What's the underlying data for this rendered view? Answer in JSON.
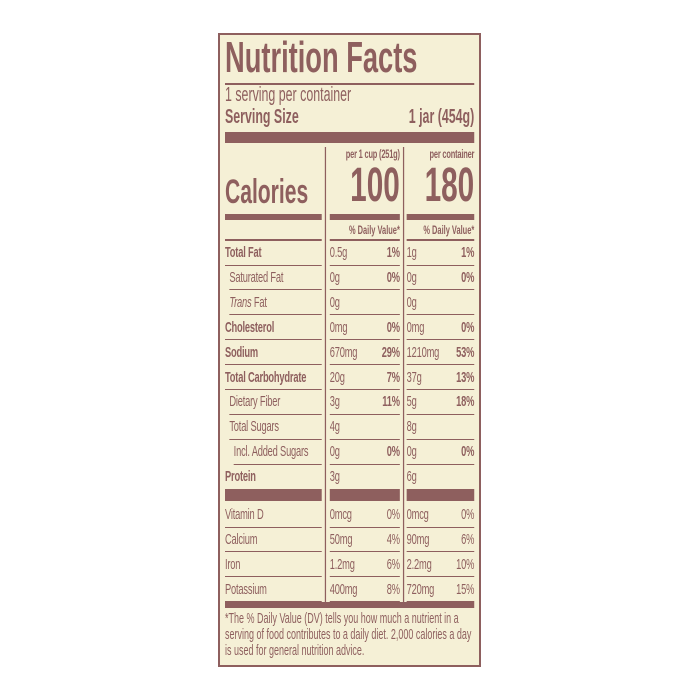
{
  "title": "Nutrition Facts",
  "servings": "1 serving per container",
  "serving_size_label": "Serving Size",
  "serving_size_value": "1 jar (454g)",
  "col1_header": "per 1 cup (251g)",
  "col2_header": "per container",
  "calories_label": "Calories",
  "calories_col1": "100",
  "calories_col2": "180",
  "dv_header": "% Daily Value*",
  "nutrients": [
    {
      "name": "Total Fat",
      "bold": true,
      "indent": 0,
      "v1": "0.5g",
      "p1": "1%",
      "v2": "1g",
      "p2": "1%"
    },
    {
      "name": "Saturated Fat",
      "bold": false,
      "indent": 1,
      "v1": "0g",
      "p1": "0%",
      "v2": "0g",
      "p2": "0%"
    },
    {
      "name": "Fat",
      "prefix_italic": "Trans",
      "bold": false,
      "indent": 1,
      "v1": "0g",
      "p1": "",
      "v2": "0g",
      "p2": ""
    },
    {
      "name": "Cholesterol",
      "bold": true,
      "indent": 0,
      "v1": "0mg",
      "p1": "0%",
      "v2": "0mg",
      "p2": "0%"
    },
    {
      "name": "Sodium",
      "bold": true,
      "indent": 0,
      "v1": "670mg",
      "p1": "29%",
      "v2": "1210mg",
      "p2": "53%"
    },
    {
      "name": "Total Carbohydrate",
      "bold": true,
      "indent": 0,
      "v1": "20g",
      "p1": "7%",
      "v2": "37g",
      "p2": "13%"
    },
    {
      "name": "Dietary Fiber",
      "bold": false,
      "indent": 1,
      "v1": "3g",
      "p1": "11%",
      "v2": "5g",
      "p2": "18%"
    },
    {
      "name": "Total Sugars",
      "bold": false,
      "indent": 1,
      "v1": "4g",
      "p1": "",
      "v2": "8g",
      "p2": ""
    },
    {
      "name": "Incl. Added Sugars",
      "bold": false,
      "indent": 2,
      "v1": "0g",
      "p1": "0%",
      "v2": "0g",
      "p2": "0%"
    },
    {
      "name": "Protein",
      "bold": true,
      "indent": 0,
      "v1": "3g",
      "p1": "",
      "v2": "6g",
      "p2": ""
    }
  ],
  "vitamins": [
    {
      "name": "Vitamin D",
      "v1": "0mcg",
      "p1": "0%",
      "v2": "0mcg",
      "p2": "0%"
    },
    {
      "name": "Calcium",
      "v1": "50mg",
      "p1": "4%",
      "v2": "90mg",
      "p2": "6%"
    },
    {
      "name": "Iron",
      "v1": "1.2mg",
      "p1": "6%",
      "v2": "2.2mg",
      "p2": "10%"
    },
    {
      "name": "Potassium",
      "v1": "400mg",
      "p1": "8%",
      "v2": "720mg",
      "p2": "15%"
    }
  ],
  "footnote": "*The % Daily Value (DV) tells you how much a nutrient in a serving of food contributes to a daily diet. 2,000 calories a day is used for general nutrition advice.",
  "colors": {
    "text": "#8e5f5e",
    "background": "#f5f0d6"
  }
}
